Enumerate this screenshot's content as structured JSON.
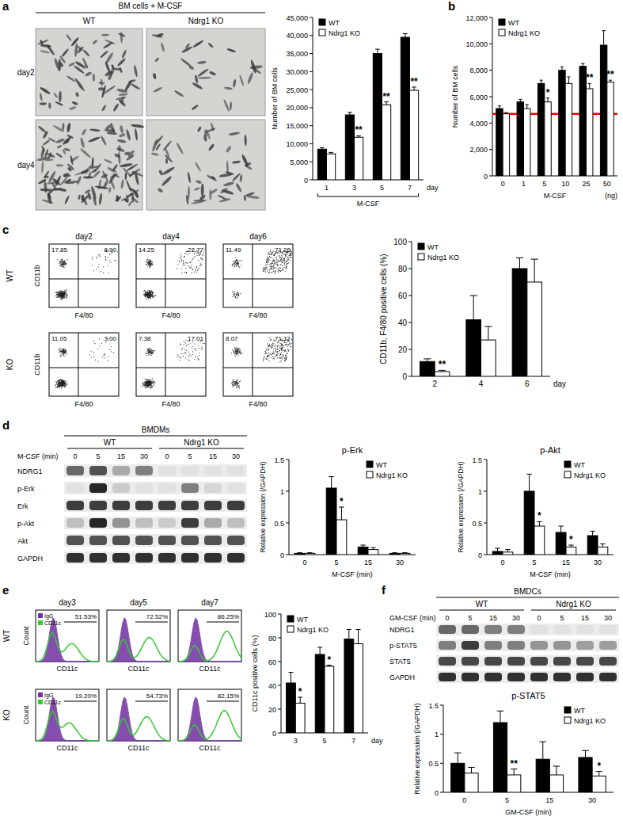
{
  "chart_data": [
    {
      "type": "bar",
      "y_label": "Number of BM cells",
      "x_label": "M-CSF",
      "x_label_right": "day",
      "categories": [
        "1",
        "3",
        "5",
        "7"
      ],
      "series": [
        {
          "name": "WT",
          "color": "#000000",
          "values": [
            8500,
            18000,
            35000,
            39500
          ],
          "errors": [
            400,
            700,
            1200,
            1000
          ]
        },
        {
          "name": "Ndrg1 KO",
          "color": "#ffffff",
          "values": [
            7200,
            11800,
            20800,
            24800
          ],
          "errors": [
            400,
            400,
            800,
            900
          ],
          "significance": [
            null,
            "**",
            "**",
            "**"
          ]
        }
      ],
      "ylim": [
        0,
        45000
      ],
      "yticks": [
        0,
        {
          "value": 5000,
          "label": "5,000"
        },
        {
          "value": 10000,
          "label": "10,000"
        },
        {
          "value": 15000,
          "label": "15,000"
        },
        {
          "value": 20000,
          "label": "20,000"
        },
        {
          "value": 25000,
          "label": "25,000"
        },
        {
          "value": 30000,
          "label": "30,000"
        },
        {
          "value": 35000,
          "label": "35,000"
        },
        {
          "value": 40000,
          "label": "40,000"
        },
        {
          "value": 45000,
          "label": "45,000"
        }
      ],
      "legend": "top-left"
    },
    {
      "type": "bar",
      "y_label": "Number of BM cells",
      "x_label": "M-CSF",
      "x_label_right": "(ng)",
      "categories": [
        "0",
        "1",
        "5",
        "10",
        "25",
        "50"
      ],
      "series": [
        {
          "name": "WT",
          "color": "#000000",
          "values": [
            5100,
            5600,
            7000,
            8000,
            8300,
            9900
          ],
          "errors": [
            200,
            200,
            250,
            250,
            200,
            1100
          ]
        },
        {
          "name": "Ndrg1 KO",
          "color": "#ffffff",
          "values": [
            4700,
            5100,
            5600,
            7000,
            6600,
            7100
          ],
          "errors": [
            100,
            300,
            300,
            500,
            400,
            150
          ],
          "significance": [
            null,
            null,
            "*",
            null,
            "**",
            "**"
          ]
        }
      ],
      "reference_line": {
        "value": 4700,
        "color": "#ff0000"
      },
      "ylim": [
        0,
        12000
      ],
      "yticks": [
        0,
        {
          "value": 2000,
          "label": "2,000"
        },
        {
          "value": 4000,
          "label": "4,000"
        },
        {
          "value": 6000,
          "label": "6,000"
        },
        {
          "value": 8000,
          "label": "8,000"
        },
        {
          "value": 10000,
          "label": "10,000"
        },
        {
          "value": 12000,
          "label": "12,000"
        }
      ],
      "legend": "top-left"
    },
    {
      "type": "bar",
      "y_label": "CD11b, F4/80 positive cells (%)",
      "x_label_right": "day",
      "categories": [
        "2",
        "4",
        "6"
      ],
      "series": [
        {
          "name": "WT",
          "color": "#000000",
          "values": [
            11,
            42,
            80
          ],
          "errors": [
            2,
            18,
            8
          ]
        },
        {
          "name": "Ndrg1 KO",
          "color": "#ffffff",
          "values": [
            3.5,
            27,
            70
          ],
          "errors": [
            1,
            10,
            17
          ],
          "significance": [
            "**",
            null,
            null
          ]
        }
      ],
      "ylim": [
        0,
        100
      ],
      "yticks": [
        0,
        20,
        40,
        60,
        80,
        100
      ],
      "legend": "top-left"
    },
    {
      "type": "bar",
      "title": "p-Erk",
      "y_label": "Relative expression (/GAPDH)",
      "x_label": "M-CSF (min)",
      "categories": [
        "0",
        "5",
        "15",
        "30"
      ],
      "series": [
        {
          "name": "WT",
          "color": "#000000",
          "values": [
            0.02,
            1.05,
            0.12,
            0.02
          ],
          "errors": [
            0.01,
            0.18,
            0.03,
            0.01
          ]
        },
        {
          "name": "Ndrg1 KO",
          "color": "#ffffff",
          "values": [
            0.02,
            0.55,
            0.08,
            0.02
          ],
          "errors": [
            0.01,
            0.2,
            0.03,
            0.01
          ],
          "significance": [
            null,
            "*",
            null,
            null
          ]
        }
      ],
      "ylim": [
        0,
        1.5
      ],
      "yticks": [
        0,
        0.5,
        1,
        1.5
      ],
      "legend": "top-right"
    },
    {
      "type": "bar",
      "title": "p-Akt",
      "y_label": "Relative expression (/GAPDH)",
      "x_label": "M-CSF (min)",
      "categories": [
        "0",
        "5",
        "15",
        "30"
      ],
      "series": [
        {
          "name": "WT",
          "color": "#000000",
          "values": [
            0.05,
            1.0,
            0.35,
            0.3
          ],
          "errors": [
            0.05,
            0.27,
            0.1,
            0.07
          ]
        },
        {
          "name": "Ndrg1 KO",
          "color": "#ffffff",
          "values": [
            0.04,
            0.45,
            0.12,
            0.12
          ],
          "errors": [
            0.04,
            0.07,
            0.03,
            0.05
          ],
          "significance": [
            null,
            "*",
            "*",
            null
          ]
        }
      ],
      "ylim": [
        0,
        1.5
      ],
      "yticks": [
        0,
        0.5,
        1,
        1.5
      ],
      "legend": "top-right"
    },
    {
      "type": "bar",
      "y_label": "CD11c positive cells (%)",
      "x_label_right": "day",
      "categories": [
        "3",
        "5",
        "7"
      ],
      "series": [
        {
          "name": "WT",
          "color": "#000000",
          "values": [
            42,
            66,
            79
          ],
          "errors": [
            9,
            6,
            8
          ]
        },
        {
          "name": "Ndrg1 KO",
          "color": "#ffffff",
          "values": [
            25,
            56,
            75
          ],
          "errors": [
            5,
            1,
            12
          ],
          "significance": [
            "*",
            "*",
            null
          ]
        }
      ],
      "ylim": [
        0,
        100
      ],
      "yticks": [
        0,
        20,
        40,
        60,
        80,
        100
      ],
      "legend": "top-left"
    },
    {
      "type": "bar",
      "title": "p-STAT5",
      "y_label": "Relative expression (/GAPDH)",
      "x_label": "GM-CSF (min)",
      "categories": [
        "0",
        "5",
        "15",
        "30"
      ],
      "series": [
        {
          "name": "WT",
          "color": "#000000",
          "values": [
            0.5,
            1.2,
            0.57,
            0.6
          ],
          "errors": [
            0.18,
            0.2,
            0.3,
            0.12
          ]
        },
        {
          "name": "Ndrg1 KO",
          "color": "#ffffff",
          "values": [
            0.33,
            0.3,
            0.3,
            0.28
          ],
          "errors": [
            0.1,
            0.1,
            0.15,
            0.08
          ],
          "significance": [
            null,
            "**",
            null,
            "*"
          ]
        }
      ],
      "ylim": [
        0,
        1.5
      ],
      "yticks": [
        0,
        0.5,
        1,
        1.5
      ],
      "legend": "top-right"
    }
  ],
  "panel_labels": [
    "a",
    "b",
    "c",
    "d",
    "e",
    "f"
  ],
  "micrographs": {
    "title": "BM cells + M-CSF",
    "columns": [
      "WT",
      "Ndrg1 KO"
    ],
    "rows": [
      "day2",
      "day4"
    ]
  },
  "flow": {
    "columns": [
      "day2",
      "day4",
      "day6"
    ],
    "y_axis": "CD11b",
    "x_axis": "F4/80",
    "rows": [
      {
        "label": "WT",
        "quadrants": [
          [
            "17.85",
            "8.90"
          ],
          [
            "14.25",
            "22.77"
          ],
          [
            "11.49",
            "71.20"
          ]
        ]
      },
      {
        "label": "KO",
        "quadrants": [
          [
            "11.05",
            "3.00"
          ],
          [
            "7.38",
            "17.01"
          ],
          [
            "8.07",
            "71.12"
          ]
        ]
      }
    ]
  },
  "histograms": {
    "columns": [
      "day3",
      "day5",
      "day7"
    ],
    "x_axis": "CD11c",
    "y_axis": "Count",
    "legend_entries": [
      "IgG",
      "CD11c"
    ],
    "legend_colors": [
      "#7030a0",
      "#33cc33"
    ],
    "rows": [
      {
        "label": "WT",
        "percents": [
          "51.53%",
          "72.52%",
          "86.25%"
        ]
      },
      {
        "label": "KO",
        "percents": [
          "19.20%",
          "54.73%",
          "82.15%"
        ]
      }
    ]
  },
  "blots": [
    {
      "title": "BMDMs",
      "groups": [
        "WT",
        "Ndrg1 KO"
      ],
      "lane_title": "M-CSF (min)",
      "lanes": [
        "0",
        "5",
        "15",
        "30"
      ],
      "rows": [
        {
          "label": "NDRG1",
          "bands": [
            0.6,
            0.7,
            0.3,
            0.5,
            0.05,
            0.05,
            0.05,
            0.05
          ]
        },
        {
          "label": "p-Erk",
          "bands": [
            0.05,
            0.9,
            0.15,
            0.05,
            0.05,
            0.5,
            0.1,
            0.05
          ]
        },
        {
          "label": "Erk",
          "bands": [
            0.8,
            0.8,
            0.8,
            0.8,
            0.8,
            0.8,
            0.8,
            0.8
          ]
        },
        {
          "label": "p-Akt",
          "bands": [
            0.2,
            0.9,
            0.4,
            0.2,
            0.15,
            0.8,
            0.3,
            0.2
          ]
        },
        {
          "label": "Akt",
          "bands": [
            0.7,
            0.7,
            0.7,
            0.7,
            0.7,
            0.7,
            0.7,
            0.7
          ]
        },
        {
          "label": "GAPDH",
          "bands": [
            0.85,
            0.85,
            0.85,
            0.85,
            0.85,
            0.85,
            0.85,
            0.85
          ]
        }
      ]
    },
    {
      "title": "BMDCs",
      "groups": [
        "WT",
        "Ndrg1 KO"
      ],
      "lane_title": "GM-CSF (min)",
      "lanes": [
        "0",
        "5",
        "15",
        "30"
      ],
      "rows": [
        {
          "label": "NDRG1",
          "bands": [
            0.6,
            0.6,
            0.5,
            0.5,
            0.05,
            0.05,
            0.05,
            0.05
          ]
        },
        {
          "label": "p-STAT5",
          "bands": [
            0.5,
            0.8,
            0.5,
            0.5,
            0.4,
            0.4,
            0.35,
            0.35
          ]
        },
        {
          "label": "STAT5",
          "bands": [
            0.75,
            0.75,
            0.75,
            0.75,
            0.75,
            0.75,
            0.75,
            0.75
          ]
        },
        {
          "label": "GAPDH",
          "bands": [
            0.85,
            0.85,
            0.85,
            0.85,
            0.85,
            0.85,
            0.85,
            0.85
          ]
        }
      ]
    }
  ]
}
